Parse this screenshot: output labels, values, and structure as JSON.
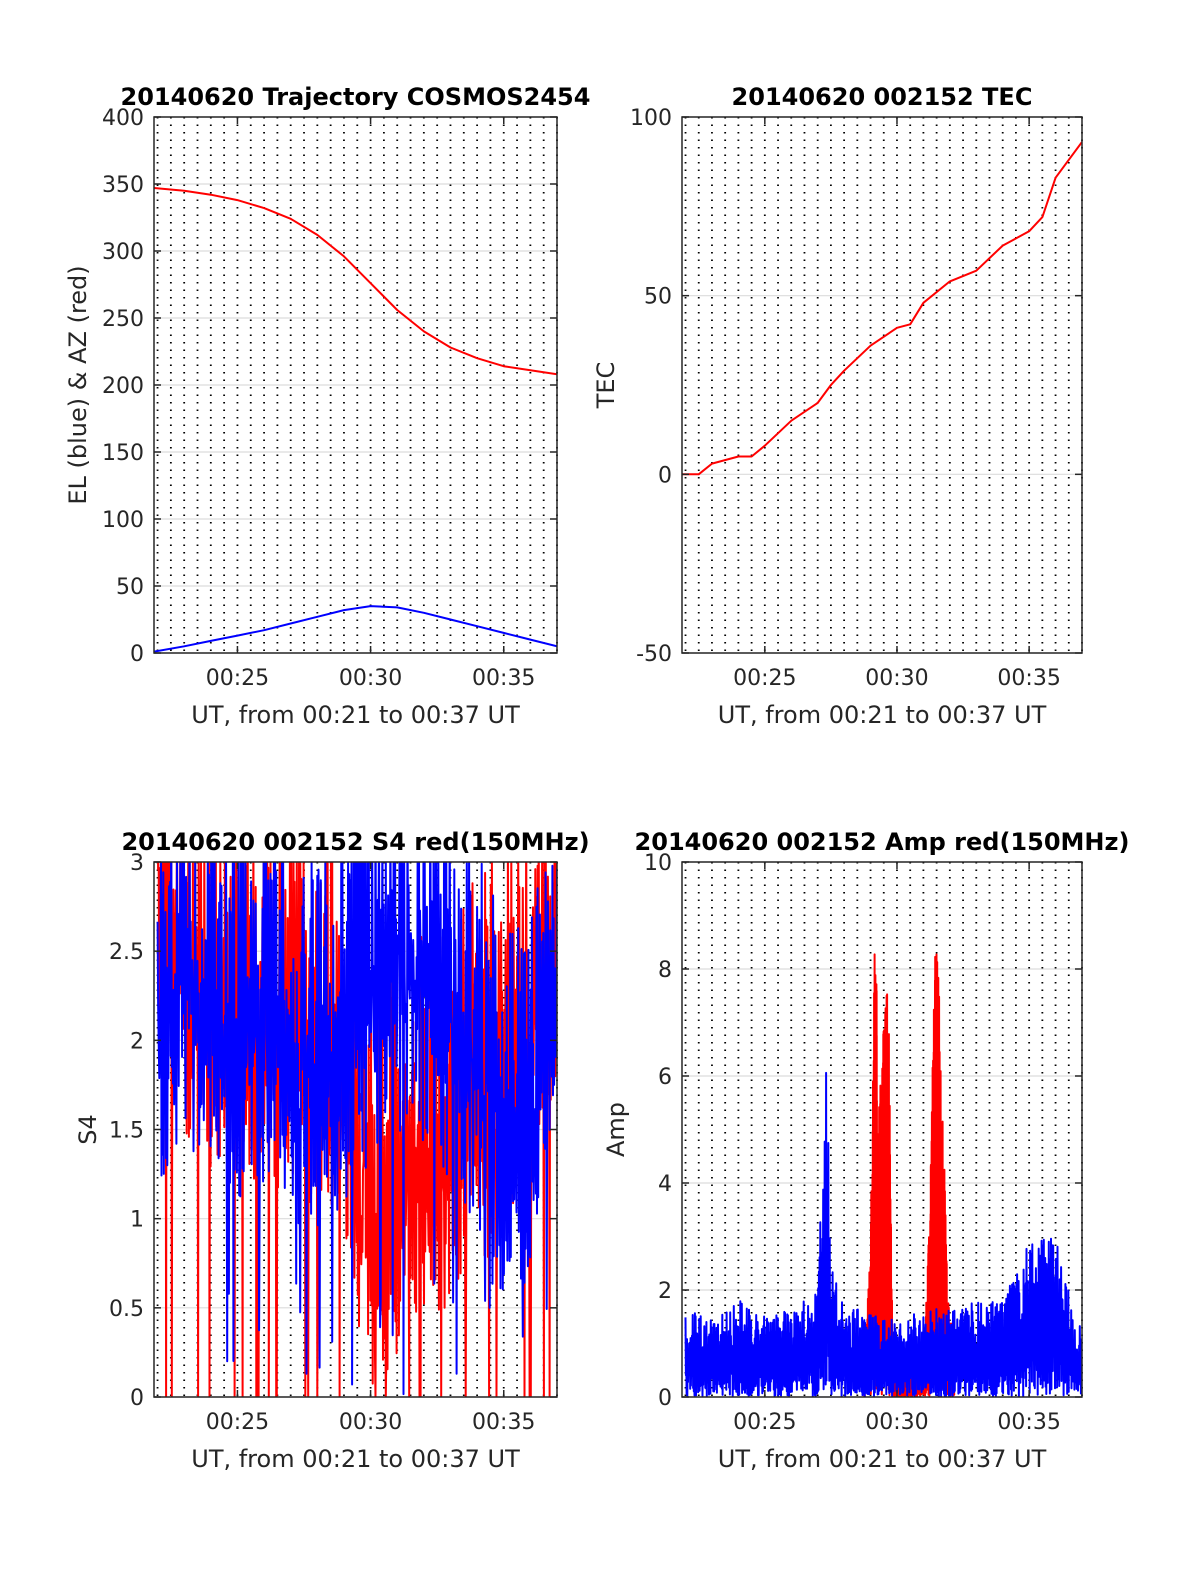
{
  "chart_data": [
    {
      "type": "line",
      "title": "20140620 Trajectory COSMOS2454",
      "xlabel": "UT, from 00:21 to 00:37 UT",
      "ylabel": "EL (blue) & AZ (red)",
      "xlim": [
        "00:21:52",
        "00:37:00"
      ],
      "ylim": [
        0,
        400
      ],
      "xticks": [
        "00:25",
        "00:30",
        "00:35"
      ],
      "yticks": [
        "0",
        "50",
        "100",
        "150",
        "200",
        "250",
        "300",
        "350",
        "400"
      ],
      "grid": true,
      "series": [
        {
          "color": "#ff0000",
          "x": [
            "00:21:52",
            "00:23:00",
            "00:24:00",
            "00:25:00",
            "00:26:00",
            "00:27:00",
            "00:28:00",
            "00:29:00",
            "00:30:00",
            "00:31:00",
            "00:32:00",
            "00:33:00",
            "00:34:00",
            "00:35:00",
            "00:36:00",
            "00:37:00"
          ],
          "values": [
            347,
            345,
            342,
            338,
            332,
            324,
            312,
            296,
            276,
            256,
            240,
            228,
            220,
            214,
            211,
            208
          ]
        },
        {
          "color": "#0000ff",
          "x": [
            "00:21:52",
            "00:23:00",
            "00:24:00",
            "00:25:00",
            "00:26:00",
            "00:27:00",
            "00:28:00",
            "00:29:00",
            "00:30:00",
            "00:31:00",
            "00:32:00",
            "00:33:00",
            "00:34:00",
            "00:35:00",
            "00:36:00",
            "00:37:00"
          ],
          "values": [
            1,
            5,
            9,
            13,
            17,
            22,
            27,
            32,
            35,
            34,
            30,
            25,
            20,
            15,
            10,
            5
          ]
        }
      ]
    },
    {
      "type": "line",
      "title": "20140620 002152 TEC",
      "xlabel": "UT, from 00:21 to 00:37 UT",
      "ylabel": "TEC",
      "xlim": [
        "00:21:52",
        "00:37:00"
      ],
      "ylim": [
        -50,
        100
      ],
      "xticks": [
        "00:25",
        "00:30",
        "00:35"
      ],
      "yticks": [
        "-50",
        "0",
        "50",
        "100"
      ],
      "grid": true,
      "series": [
        {
          "color": "#ff0000",
          "x": [
            "00:21:52",
            "00:22:30",
            "00:23:00",
            "00:24:00",
            "00:24:30",
            "00:25:00",
            "00:26:00",
            "00:27:00",
            "00:27:30",
            "00:28:00",
            "00:29:00",
            "00:30:00",
            "00:30:30",
            "00:31:00",
            "00:32:00",
            "00:33:00",
            "00:34:00",
            "00:35:00",
            "00:35:30",
            "00:36:00",
            "00:37:00"
          ],
          "values": [
            0,
            0,
            3,
            5,
            5,
            8,
            15,
            20,
            25,
            29,
            36,
            41,
            42,
            48,
            54,
            57,
            64,
            68,
            72,
            83,
            93
          ]
        }
      ]
    },
    {
      "type": "line",
      "title": "20140620 002152 S4 red(150MHz)",
      "xlabel": "UT, from 00:21 to 00:37 UT",
      "ylabel": "S4",
      "xlim": [
        "00:21:52",
        "00:37:00"
      ],
      "ylim": [
        0,
        3
      ],
      "xticks": [
        "00:25",
        "00:30",
        "00:35"
      ],
      "yticks": [
        "0",
        "0.5",
        "1",
        "1.5",
        "2",
        "2.5",
        "3"
      ],
      "grid": true,
      "series": [
        {
          "color": "#ff0000",
          "x": [
            "00:22",
            "00:23",
            "00:24",
            "00:25",
            "00:26",
            "00:27",
            "00:28",
            "00:29",
            "00:30",
            "00:31",
            "00:32",
            "00:33",
            "00:34",
            "00:35",
            "00:36",
            "00:37"
          ],
          "values": [
            3,
            2.6,
            2.3,
            2.4,
            2.2,
            2.3,
            2.1,
            2.0,
            1.1,
            1.3,
            1.5,
            1.6,
            1.8,
            2.0,
            2.4,
            2.6
          ]
        },
        {
          "color": "#0000ff",
          "x": [
            "00:22",
            "00:23",
            "00:24",
            "00:25",
            "00:26",
            "00:27",
            "00:28",
            "00:29",
            "00:30",
            "00:31",
            "00:32",
            "00:33",
            "00:34",
            "00:35",
            "00:36",
            "00:37"
          ],
          "values": [
            2.3,
            2.5,
            2.4,
            2.2,
            2.3,
            2.1,
            2.0,
            2.2,
            2.4,
            2.6,
            2.5,
            2.3,
            2.0,
            1.5,
            1.8,
            2.4
          ]
        }
      ]
    },
    {
      "type": "line",
      "title": "20140620 002152 Amp red(150MHz)",
      "xlabel": "UT, from 00:21 to 00:37 UT",
      "ylabel": "Amp",
      "xlim": [
        "00:21:52",
        "00:37:00"
      ],
      "ylim": [
        0,
        10
      ],
      "xticks": [
        "00:25",
        "00:30",
        "00:35"
      ],
      "yticks": [
        "0",
        "2",
        "4",
        "6",
        "8",
        "10"
      ],
      "grid": true,
      "series": [
        {
          "color": "#ff0000",
          "x": [
            "00:28:45",
            "00:29:00",
            "00:29:10",
            "00:29:20",
            "00:29:30",
            "00:29:40",
            "00:29:50",
            "00:31:00",
            "00:31:15",
            "00:31:25",
            "00:31:35",
            "00:31:45",
            "00:31:55",
            "00:32:10"
          ],
          "values": [
            0.6,
            2.5,
            8.1,
            5.0,
            6.3,
            7.3,
            1.0,
            0.7,
            3.2,
            7.7,
            7.5,
            4.6,
            1.8,
            0.8
          ]
        },
        {
          "color": "#0000ff",
          "x": [
            "00:22",
            "00:23",
            "00:24",
            "00:25",
            "00:26",
            "00:27",
            "00:27:20",
            "00:27:30",
            "00:28",
            "00:29",
            "00:30",
            "00:31",
            "00:32",
            "00:33",
            "00:34",
            "00:35",
            "00:36",
            "00:37"
          ],
          "values": [
            1.5,
            1.3,
            1.7,
            1.4,
            1.5,
            1.8,
            5.8,
            2.2,
            1.6,
            1.4,
            1.3,
            1.5,
            1.5,
            1.7,
            1.6,
            2.7,
            2.7,
            1.1
          ]
        }
      ]
    }
  ]
}
